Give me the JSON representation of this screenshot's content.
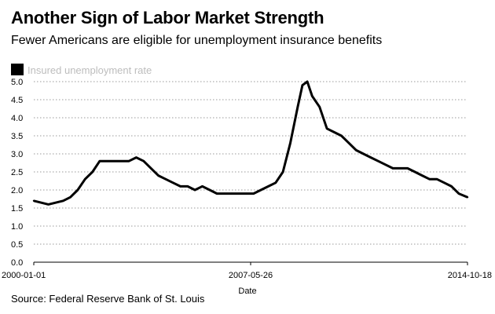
{
  "header": {
    "title": "Another Sign of Labor Market Strength",
    "subtitle": "Fewer Americans are eligible for unemployment insurance benefits"
  },
  "footer": {
    "source": "Source: Federal Reserve Bank of St. Louis"
  },
  "colors": {
    "line": "#000000",
    "grid": "#9a9a9a",
    "legend_text": "#bdbdbd"
  },
  "chart_data": {
    "type": "line",
    "title": "Another Sign of Labor Market Strength",
    "subtitle": "Fewer Americans are eligible for unemployment insurance benefits",
    "xlabel": "Date",
    "ylabel": "",
    "x_ticks": [
      "2000-01-01",
      "2007-05-26",
      "2014-10-18"
    ],
    "y_ticks": [
      "0.0",
      "0.5",
      "1.0",
      "1.5",
      "2.0",
      "2.5",
      "3.0",
      "3.5",
      "4.0",
      "4.5",
      "5.0"
    ],
    "ylim": [
      0,
      5.0
    ],
    "xlim": [
      "2000-01-01",
      "2014-10-18"
    ],
    "grid": "horizontal dotted",
    "legend_position": "top-left",
    "series": [
      {
        "name": "Insured unemployment rate",
        "x": [
          "2000-01-01",
          "2000-07-01",
          "2001-01-01",
          "2001-04-01",
          "2001-07-01",
          "2001-10-01",
          "2002-01-01",
          "2002-04-01",
          "2002-07-01",
          "2002-10-01",
          "2003-01-01",
          "2003-04-01",
          "2003-07-01",
          "2003-10-01",
          "2004-01-01",
          "2004-04-01",
          "2004-07-01",
          "2004-10-01",
          "2005-01-01",
          "2005-04-01",
          "2005-07-01",
          "2005-10-01",
          "2006-01-01",
          "2006-04-01",
          "2006-07-01",
          "2006-10-01",
          "2007-01-01",
          "2007-04-01",
          "2007-07-01",
          "2007-10-01",
          "2008-01-01",
          "2008-04-01",
          "2008-07-01",
          "2008-10-01",
          "2009-01-01",
          "2009-03-01",
          "2009-05-01",
          "2009-07-01",
          "2009-10-01",
          "2010-01-01",
          "2010-04-01",
          "2010-07-01",
          "2010-10-01",
          "2011-01-01",
          "2011-04-01",
          "2011-07-01",
          "2011-10-01",
          "2012-01-01",
          "2012-04-01",
          "2012-07-01",
          "2012-10-01",
          "2013-01-01",
          "2013-04-01",
          "2013-07-01",
          "2013-10-01",
          "2014-01-01",
          "2014-04-01",
          "2014-07-01",
          "2014-10-18"
        ],
        "values": [
          1.7,
          1.6,
          1.7,
          1.8,
          2.0,
          2.3,
          2.5,
          2.8,
          2.8,
          2.8,
          2.8,
          2.8,
          2.9,
          2.8,
          2.6,
          2.4,
          2.3,
          2.2,
          2.1,
          2.1,
          2.0,
          2.1,
          2.0,
          1.9,
          1.9,
          1.9,
          1.9,
          1.9,
          1.9,
          2.0,
          2.1,
          2.2,
          2.5,
          3.3,
          4.3,
          4.9,
          5.0,
          4.6,
          4.3,
          3.7,
          3.6,
          3.5,
          3.3,
          3.1,
          3.0,
          2.9,
          2.8,
          2.7,
          2.6,
          2.6,
          2.6,
          2.5,
          2.4,
          2.3,
          2.3,
          2.2,
          2.1,
          1.9,
          1.8
        ]
      }
    ]
  }
}
